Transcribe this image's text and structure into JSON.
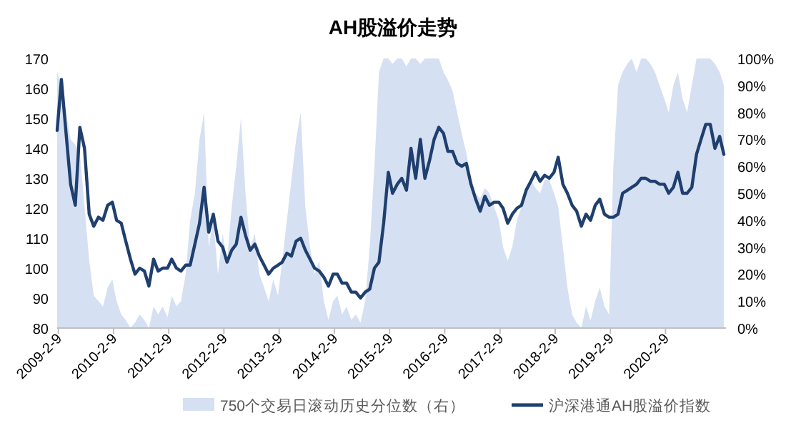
{
  "chart_data": {
    "type": "line",
    "title": "AH股溢价走势",
    "x": [
      "2009-02",
      "2009-03",
      "2009-04",
      "2009-05",
      "2009-06",
      "2009-07",
      "2009-08",
      "2009-09",
      "2009-10",
      "2009-11",
      "2009-12",
      "2010-01",
      "2010-02",
      "2010-03",
      "2010-04",
      "2010-05",
      "2010-06",
      "2010-07",
      "2010-08",
      "2010-09",
      "2010-10",
      "2010-11",
      "2010-12",
      "2011-01",
      "2011-02",
      "2011-03",
      "2011-04",
      "2011-05",
      "2011-06",
      "2011-07",
      "2011-08",
      "2011-09",
      "2011-10",
      "2011-11",
      "2011-12",
      "2012-01",
      "2012-02",
      "2012-03",
      "2012-04",
      "2012-05",
      "2012-06",
      "2012-07",
      "2012-08",
      "2012-09",
      "2012-10",
      "2012-11",
      "2012-12",
      "2013-01",
      "2013-02",
      "2013-03",
      "2013-04",
      "2013-05",
      "2013-06",
      "2013-07",
      "2013-08",
      "2013-09",
      "2013-10",
      "2013-11",
      "2013-12",
      "2014-01",
      "2014-02",
      "2014-03",
      "2014-04",
      "2014-05",
      "2014-06",
      "2014-07",
      "2014-08",
      "2014-09",
      "2014-10",
      "2014-11",
      "2014-12",
      "2015-01",
      "2015-02",
      "2015-03",
      "2015-04",
      "2015-05",
      "2015-06",
      "2015-07",
      "2015-08",
      "2015-09",
      "2015-10",
      "2015-11",
      "2015-12",
      "2016-01",
      "2016-02",
      "2016-03",
      "2016-04",
      "2016-05",
      "2016-06",
      "2016-07",
      "2016-08",
      "2016-09",
      "2016-10",
      "2016-11",
      "2016-12",
      "2017-01",
      "2017-02",
      "2017-03",
      "2017-04",
      "2017-05",
      "2017-06",
      "2017-07",
      "2017-08",
      "2017-09",
      "2017-10",
      "2017-11",
      "2017-12",
      "2018-01",
      "2018-02",
      "2018-03",
      "2018-04",
      "2018-05",
      "2018-06",
      "2018-07",
      "2018-08",
      "2018-09",
      "2018-10",
      "2018-11",
      "2018-12",
      "2019-01",
      "2019-02",
      "2019-03",
      "2019-04",
      "2019-05",
      "2019-06",
      "2019-07",
      "2019-08",
      "2019-09",
      "2019-10",
      "2019-11",
      "2019-12",
      "2020-01",
      "2020-02",
      "2020-03",
      "2020-04",
      "2020-05",
      "2020-06",
      "2020-07",
      "2020-08",
      "2020-09",
      "2020-10",
      "2020-11",
      "2020-12",
      "2021-01",
      "2021-02",
      "2021-03"
    ],
    "series": [
      {
        "name": "750个交易日滚动历史分位数（右）",
        "type": "area",
        "axis": "y2",
        "color": "#d6e0f3",
        "values": [
          95,
          90,
          80,
          70,
          68,
          65,
          45,
          25,
          12,
          10,
          8,
          15,
          18,
          10,
          5,
          3,
          0,
          2,
          5,
          3,
          0,
          8,
          5,
          8,
          4,
          12,
          8,
          10,
          20,
          40,
          50,
          70,
          80,
          30,
          40,
          20,
          35,
          25,
          45,
          60,
          78,
          50,
          30,
          35,
          20,
          15,
          10,
          18,
          12,
          25,
          40,
          55,
          70,
          80,
          45,
          30,
          20,
          25,
          10,
          3,
          10,
          12,
          5,
          8,
          3,
          5,
          2,
          10,
          30,
          60,
          95,
          100,
          100,
          98,
          100,
          100,
          97,
          100,
          100,
          98,
          100,
          100,
          100,
          100,
          95,
          92,
          88,
          80,
          72,
          65,
          55,
          50,
          48,
          52,
          50,
          45,
          40,
          30,
          25,
          30,
          40,
          45,
          50,
          55,
          52,
          50,
          55,
          55,
          50,
          45,
          30,
          15,
          5,
          2,
          0,
          8,
          3,
          10,
          15,
          8,
          5,
          60,
          90,
          95,
          98,
          100,
          95,
          100,
          100,
          98,
          95,
          90,
          85,
          80,
          90,
          95,
          85,
          80,
          90,
          100,
          100,
          100,
          100,
          98,
          95,
          90
        ]
      },
      {
        "name": "沪深港通AH股溢价指数",
        "color": "#1f3f6e",
        "values": [
          146,
          163,
          145,
          128,
          121,
          147,
          140,
          118,
          114,
          117,
          116,
          121,
          122,
          116,
          115,
          109,
          103,
          98,
          100,
          99,
          94,
          103,
          99,
          100,
          100,
          103,
          100,
          99,
          101,
          101,
          108,
          115,
          127,
          112,
          118,
          109,
          107,
          102,
          106,
          108,
          117,
          111,
          106,
          108,
          104,
          101,
          98,
          100,
          101,
          102,
          105,
          104,
          109,
          110,
          106,
          103,
          100,
          99,
          97,
          94,
          98,
          98,
          95,
          95,
          92,
          92,
          90,
          92,
          93,
          100,
          102,
          115,
          132,
          125,
          128,
          130,
          126,
          140,
          130,
          143,
          130,
          136,
          143,
          147,
          145,
          139,
          139,
          135,
          134,
          135,
          128,
          123,
          119,
          124,
          121,
          122,
          122,
          120,
          115,
          118,
          120,
          121,
          126,
          129,
          132,
          129,
          131,
          130,
          132,
          137,
          128,
          125,
          121,
          119,
          114,
          118,
          116,
          121,
          123,
          118,
          117,
          117,
          118,
          125,
          126,
          127,
          128,
          130,
          130,
          129,
          129,
          128,
          128,
          125,
          127,
          132,
          125,
          125,
          127,
          138,
          143,
          148,
          148,
          140,
          144,
          138
        ]
      }
    ],
    "xlim": [
      "2009-02-01",
      "2021-03-15"
    ],
    "xticks": [
      {
        "value": "2009-02-09",
        "label": "2009-2-9"
      },
      {
        "value": "2010-02-09",
        "label": "2010-2-9"
      },
      {
        "value": "2011-02-09",
        "label": "2011-2-9"
      },
      {
        "value": "2012-02-09",
        "label": "2012-2-9"
      },
      {
        "value": "2013-02-09",
        "label": "2013-2-9"
      },
      {
        "value": "2014-02-09",
        "label": "2014-2-9"
      },
      {
        "value": "2015-02-09",
        "label": "2015-2-9"
      },
      {
        "value": "2016-02-09",
        "label": "2016-2-9"
      },
      {
        "value": "2017-02-09",
        "label": "2017-2-9"
      },
      {
        "value": "2018-02-09",
        "label": "2018-2-9"
      },
      {
        "value": "2019-02-09",
        "label": "2019-2-9"
      },
      {
        "value": "2020-02-09",
        "label": "2020-2-9"
      }
    ],
    "ylim": [
      80,
      170
    ],
    "yticks": [
      80,
      90,
      100,
      110,
      120,
      130,
      140,
      150,
      160,
      170
    ],
    "y2lim": [
      0,
      100
    ],
    "y2ticks": [
      {
        "value": 0,
        "label": "0%"
      },
      {
        "value": 10,
        "label": "10%"
      },
      {
        "value": 20,
        "label": "20%"
      },
      {
        "value": 30,
        "label": "30%"
      },
      {
        "value": 40,
        "label": "40%"
      },
      {
        "value": 50,
        "label": "50%"
      },
      {
        "value": 60,
        "label": "60%"
      },
      {
        "value": 70,
        "label": "70%"
      },
      {
        "value": 80,
        "label": "80%"
      },
      {
        "value": 90,
        "label": "90%"
      },
      {
        "value": 100,
        "label": "100%"
      }
    ],
    "legend": "bottom",
    "grid": false,
    "line_style": "solid",
    "marker": "none"
  }
}
